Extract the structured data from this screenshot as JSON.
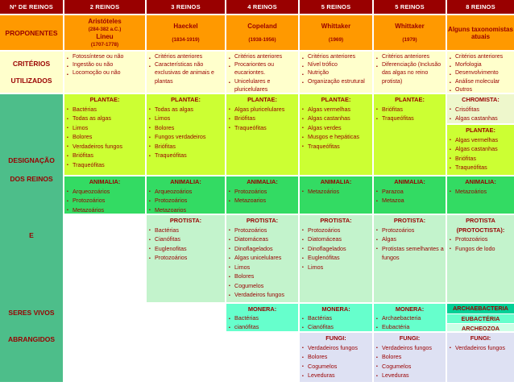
{
  "glyphs": {
    "bullet": "▪"
  },
  "colors": {
    "header-bg": "#990000",
    "header-text": "#FFFFFF",
    "proponent-bg": "#FF9900",
    "criteria-bg": "#FFFFCC",
    "label-green": "#4DBE8A",
    "plantae": "#CCFF33",
    "chromista": "#EEF7CC",
    "animalia": "#33DB63",
    "protista": "#C3F3CC",
    "monera": "#66FFCC",
    "archaebacteria": "#00D096",
    "eubacteria": "#66FFCC",
    "archeozoa": "#CCFFE6",
    "fungi": "#DEE1F3",
    "text": "#990000"
  },
  "corner": "Nº DE REINOS",
  "left": {
    "proponentes": "PROPONENTES",
    "criterios": [
      "CRITÉRIOS",
      "UTILIZADOS"
    ],
    "designacao": [
      "DESIGNAÇÃO",
      "DOS REINOS",
      "E",
      "SERES VIVOS",
      "ABRANGIDOS"
    ]
  },
  "columns": [
    {
      "header": "2 REINOS",
      "proponent_name": "Aristóteles",
      "proponent_years": "(284-382 a.C.)",
      "proponent_name2": "Lineu",
      "proponent_years2": "(1707-1778)",
      "criteria": [
        "Fotossíntese ou não",
        "Ingestão ou não",
        "Locomoção ou não"
      ],
      "plantae_title": "PLANTAE:",
      "plantae": [
        "Bactérias",
        "Todas as algas",
        "Limos",
        "Bolores",
        "Verdadeiros fungos",
        "Briófitas",
        "Traqueófitas"
      ],
      "animalia_title": "ANIMALIA:",
      "animalia": [
        "Arqueozoários",
        "Protozoários",
        "Metazoários"
      ]
    },
    {
      "header": "3 REINOS",
      "proponent_name": "Haeckel",
      "proponent_years": "(1834-1919)",
      "criteria": [
        "Critérios anteriores",
        "Características não exclusivas de animais e plantas"
      ],
      "plantae_title": "PLANTAE:",
      "plantae": [
        "Todas as algas",
        "Limos",
        "Bolores",
        "Fungos verdadeiros",
        "Briófitas",
        "Traqueófitas"
      ],
      "animalia_title": "ANIMALIA:",
      "animalia": [
        "Arqueozoários",
        "Protozoários",
        "Metazoarios"
      ],
      "protista_title": "PROTISTA:",
      "protista": [
        "Bactérias",
        "Cianófitas",
        "Euglenofitas",
        "Protozoários"
      ]
    },
    {
      "header": "4 REINOS",
      "proponent_name": "Copeland",
      "proponent_years": "(1938-1956)",
      "criteria": [
        "Critérios anteriores",
        "Procariontes ou eucariontes.",
        "Unicelulares e pluricelulares"
      ],
      "plantae_title": "PLANTAE:",
      "plantae": [
        "Algas pluricelulares",
        "Briófitas",
        "Traqueófitas"
      ],
      "animalia_title": "ANIMALIA:",
      "animalia": [
        "Protozoários",
        "Metazoarios"
      ],
      "protista_title": "PROTISTA:",
      "protista": [
        "Protozoários",
        "Diatomáceas",
        "Dinoflagelados",
        "Algas unicelulares",
        "Limos",
        "Bolores",
        "Cogumelos",
        "Verdadeiros fungos"
      ],
      "monera_title": "MONERA:",
      "monera": [
        "Bactérias",
        "cianófitas"
      ]
    },
    {
      "header": "5 REINOS",
      "proponent_name": "Whittaker",
      "proponent_years": "(1969)",
      "criteria": [
        "Critérios anteriores",
        "Nível trófico",
        "Nutrição",
        "Organização estrutural"
      ],
      "plantae_title": "PLANTAE:",
      "plantae": [
        "Algas vermelhas",
        "Algas castanhas",
        "Algas verdes",
        "Musgos e hepáticas",
        "Traqueófitas"
      ],
      "animalia_title": "ANIMALIA:",
      "animalia": [
        "Metazoários"
      ],
      "protista_title": "PROTISTA:",
      "protista": [
        "Protozoários",
        "Diatomáceas",
        "Dinoflagelados",
        "Euglenófitas",
        "Limos"
      ],
      "monera_title": "MONERA:",
      "monera": [
        "Bactérias",
        "Cianófitas"
      ],
      "fungi_title": "FUNGI:",
      "fungi": [
        "Verdadeiros fungos",
        "Bolores",
        "Cogumelos",
        "Leveduras"
      ]
    },
    {
      "header": "5 REINOS",
      "proponent_name": "Whittaker",
      "proponent_years": "(1979)",
      "criteria": [
        "Critérios anteriores",
        "Diferenciação (Inclusão das algas no reino protista)"
      ],
      "plantae_title": "PLANTAE:",
      "plantae": [
        "Briófitas",
        "Traqueófitas"
      ],
      "animalia_title": "ANIMALIA:",
      "animalia": [
        "Parazoa",
        "Metazoa"
      ],
      "protista_title": "PROTISTA:",
      "protista": [
        "Protozoários",
        "Algas",
        "Protistas semelhantes a fungos"
      ],
      "monera_title": "MONERA:",
      "monera": [
        "Archaebacteria",
        "Eubactéria"
      ],
      "fungi_title": "FUNGI:",
      "fungi": [
        "Verdadeiros fungos",
        "Bolores",
        "Cogumelos",
        "Leveduras"
      ]
    },
    {
      "header": "8 REINOS",
      "proponent_name": "Alguns taxonomistas atuais",
      "criteria": [
        "Critérios anteriores",
        "Morfologia",
        "Desenvolvimento",
        "Análise molecular",
        "Outros"
      ],
      "chromista_title": "CHROMISTA:",
      "chromista": [
        "Crisófitas",
        "Algas castanhas"
      ],
      "plantae_title": "PLANTAE:",
      "plantae": [
        "Algas vermelhas",
        "Algas castanhas",
        "Briófitas",
        "Traqueófitas"
      ],
      "animalia_title": "ANIMALIA:",
      "animalia": [
        "Metazoários"
      ],
      "protista_title": "PROTISTA",
      "protista_subtitle": "(PROTOCTISTA):",
      "protista": [
        "Protozoários",
        "Fungos de lodo"
      ],
      "strips": [
        "ARCHAEBACTERIA",
        "EUBACTÉRIA",
        "ARCHEOZOA"
      ],
      "fungi_title": "FUNGI:",
      "fungi": [
        "Verdadeiros fungos"
      ]
    }
  ]
}
